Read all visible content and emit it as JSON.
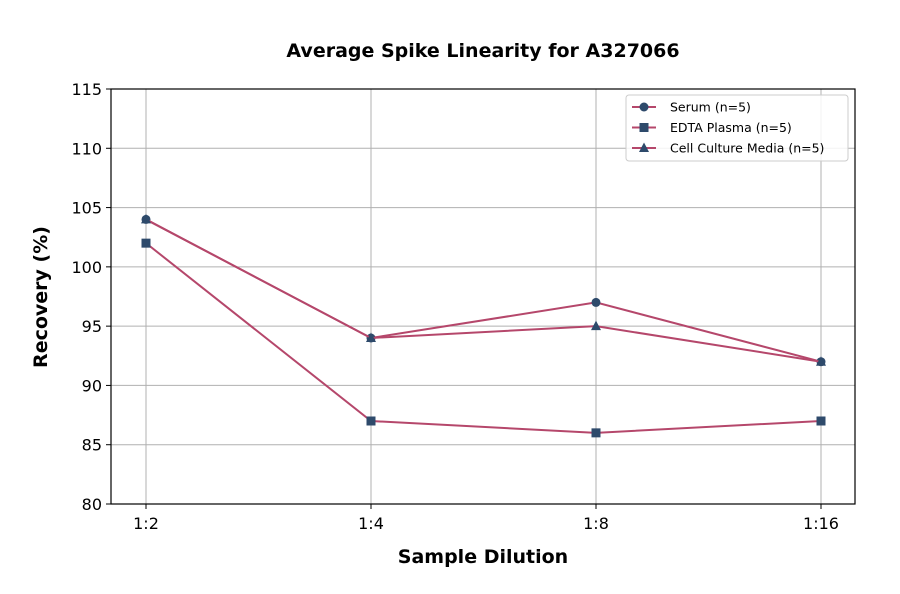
{
  "chart_data": {
    "type": "line",
    "title": "Average Spike Linearity for A327066",
    "xlabel": "Sample Dilution",
    "ylabel": "Recovery (%)",
    "categories": [
      "1:2",
      "1:4",
      "1:8",
      "1:16"
    ],
    "ylim": [
      80,
      115
    ],
    "yticks": [
      80,
      85,
      90,
      95,
      100,
      105,
      110,
      115
    ],
    "grid": true,
    "legend_position": "top-right",
    "line_color": "#b5476b",
    "marker_color": "#2e4a6b",
    "series": [
      {
        "name": "Serum (n=5)",
        "marker": "circle",
        "values": [
          104,
          94,
          97,
          92
        ]
      },
      {
        "name": "EDTA Plasma (n=5)",
        "marker": "square",
        "values": [
          102,
          87,
          86,
          87
        ]
      },
      {
        "name": "Cell Culture Media (n=5)",
        "marker": "triangle",
        "values": [
          104,
          94,
          95,
          92
        ]
      }
    ]
  }
}
